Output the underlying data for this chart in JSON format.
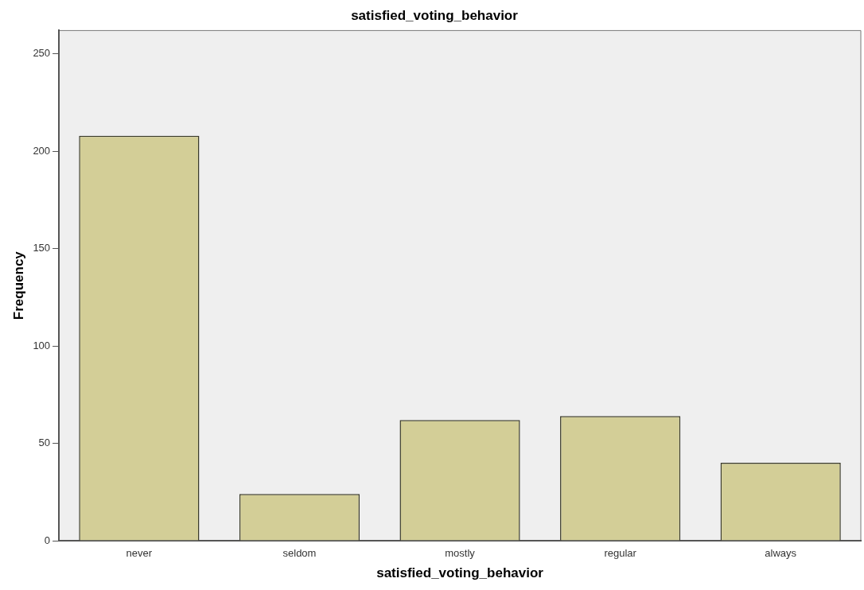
{
  "chart_data": {
    "type": "bar",
    "title": "satisfied_voting_behavior",
    "xlabel": "satisfied_voting_behavior",
    "ylabel": "Frequency",
    "categories": [
      "never",
      "seldom",
      "mostly",
      "regular",
      "always"
    ],
    "values": [
      208,
      24,
      62,
      64,
      40
    ],
    "color": "#d3ce97",
    "ylim": [
      0,
      262
    ],
    "yticks": [
      0,
      50,
      100,
      150,
      200,
      250
    ],
    "grid": false,
    "legend": false
  }
}
